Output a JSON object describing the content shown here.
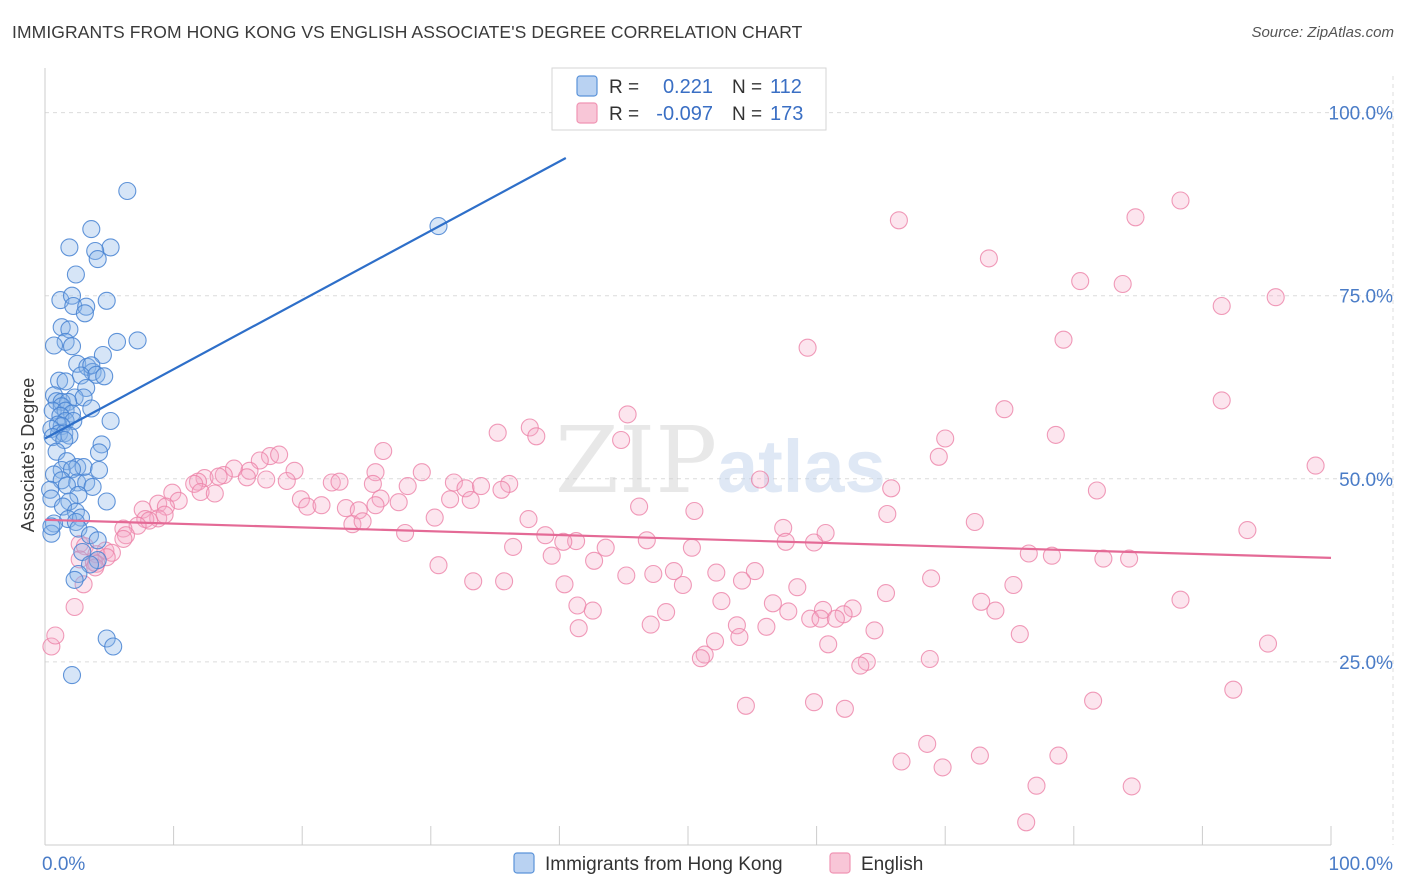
{
  "title": "IMMIGRANTS FROM HONG KONG VS ENGLISH ASSOCIATE'S DEGREE CORRELATION CHART",
  "source": "Source: ZipAtlas.com",
  "watermark": {
    "part1": "ZIP",
    "part2": "atlas"
  },
  "colors": {
    "blue": "#5b93d9",
    "blue_line": "#2e6fc9",
    "pink": "#f095b4",
    "pink_line": "#e46a96",
    "grid": "#dcdcdc",
    "tick": "#4a7cc7"
  },
  "chart_data": {
    "type": "scatter",
    "ylabel": "Associate's Degree",
    "xlim": [
      0,
      100
    ],
    "ylim": [
      0,
      105
    ],
    "x_ticks": [
      {
        "value": 0,
        "label": "0.0%"
      },
      {
        "value": 100,
        "label": "100.0%"
      }
    ],
    "y_ticks": [
      {
        "value": 25,
        "label": "25.0%"
      },
      {
        "value": 50,
        "label": "50.0%"
      },
      {
        "value": 75,
        "label": "75.0%"
      },
      {
        "value": 100,
        "label": "100.0%"
      }
    ],
    "legend_top": [
      {
        "series": "Immigrants from Hong Kong",
        "r_label": "R =",
        "r": "0.221",
        "n_label": "N =",
        "n": "112"
      },
      {
        "series": "English",
        "r_label": "R =",
        "r": "-0.097",
        "n_label": "N =",
        "n": "173"
      }
    ],
    "series": [
      {
        "name": "Immigrants from Hong Kong",
        "color": "#5b93d9",
        "trend": {
          "x": [
            0,
            40.5
          ],
          "y": [
            55.5,
            93.8
          ]
        },
        "points": [
          [
            6.4,
            89.3
          ],
          [
            3.6,
            84.1
          ],
          [
            1.9,
            81.6
          ],
          [
            5.1,
            81.6
          ],
          [
            3.9,
            81.1
          ],
          [
            4.1,
            80.0
          ],
          [
            2.4,
            77.9
          ],
          [
            1.2,
            74.4
          ],
          [
            2.1,
            75.0
          ],
          [
            2.2,
            73.6
          ],
          [
            3.2,
            73.5
          ],
          [
            4.8,
            74.3
          ],
          [
            3.1,
            72.6
          ],
          [
            1.3,
            70.7
          ],
          [
            1.9,
            70.4
          ],
          [
            1.6,
            68.7
          ],
          [
            5.6,
            68.7
          ],
          [
            7.2,
            68.9
          ],
          [
            2.1,
            68.1
          ],
          [
            0.7,
            68.2
          ],
          [
            4.5,
            66.9
          ],
          [
            2.5,
            65.7
          ],
          [
            3.3,
            65.3
          ],
          [
            3.7,
            64.6
          ],
          [
            3.6,
            65.5
          ],
          [
            2.8,
            64.1
          ],
          [
            4.0,
            64.2
          ],
          [
            4.6,
            64.0
          ],
          [
            1.1,
            63.4
          ],
          [
            1.6,
            63.3
          ],
          [
            3.2,
            62.4
          ],
          [
            0.7,
            61.4
          ],
          [
            2.3,
            61.1
          ],
          [
            3.0,
            61.1
          ],
          [
            0.9,
            60.6
          ],
          [
            1.3,
            60.5
          ],
          [
            1.8,
            60.5
          ],
          [
            1.3,
            59.9
          ],
          [
            3.6,
            59.6
          ],
          [
            0.6,
            59.3
          ],
          [
            1.6,
            59.3
          ],
          [
            2.1,
            58.9
          ],
          [
            1.2,
            58.6
          ],
          [
            1.6,
            57.9
          ],
          [
            2.2,
            57.9
          ],
          [
            5.1,
            57.9
          ],
          [
            1.0,
            57.4
          ],
          [
            1.3,
            57.2
          ],
          [
            0.5,
            56.8
          ],
          [
            1.1,
            56.2
          ],
          [
            1.5,
            56.2
          ],
          [
            1.9,
            55.9
          ],
          [
            0.6,
            55.7
          ],
          [
            1.5,
            55.3
          ],
          [
            4.4,
            54.7
          ],
          [
            0.9,
            53.7
          ],
          [
            4.2,
            53.6
          ],
          [
            1.7,
            52.4
          ],
          [
            2.5,
            51.6
          ],
          [
            3.0,
            51.6
          ],
          [
            1.3,
            51.2
          ],
          [
            2.1,
            51.3
          ],
          [
            4.2,
            51.2
          ],
          [
            0.7,
            50.6
          ],
          [
            1.3,
            49.8
          ],
          [
            2.5,
            49.5
          ],
          [
            3.2,
            49.5
          ],
          [
            1.7,
            49.1
          ],
          [
            3.7,
            48.9
          ],
          [
            0.4,
            48.5
          ],
          [
            2.6,
            47.8
          ],
          [
            0.5,
            47.3
          ],
          [
            1.9,
            46.9
          ],
          [
            4.8,
            46.9
          ],
          [
            1.4,
            46.2
          ],
          [
            2.4,
            45.5
          ],
          [
            1.8,
            44.5
          ],
          [
            2.8,
            44.7
          ],
          [
            2.4,
            44.1
          ],
          [
            0.7,
            43.9
          ],
          [
            2.6,
            43.2
          ],
          [
            0.5,
            42.5
          ],
          [
            3.5,
            42.3
          ],
          [
            4.1,
            41.6
          ],
          [
            2.9,
            40.0
          ],
          [
            0.5,
            43.5
          ],
          [
            4.1,
            38.9
          ],
          [
            3.5,
            38.3
          ],
          [
            2.6,
            37.0
          ],
          [
            2.3,
            36.2
          ],
          [
            4.8,
            28.2
          ],
          [
            5.3,
            27.1
          ],
          [
            2.1,
            23.2
          ],
          [
            30.6,
            84.5
          ]
        ]
      },
      {
        "name": "English",
        "color": "#f095b4",
        "trend": {
          "x": [
            0,
            100
          ],
          "y": [
            44.4,
            39.2
          ]
        },
        "points": [
          [
            88.3,
            88.0
          ],
          [
            84.8,
            85.7
          ],
          [
            66.4,
            85.3
          ],
          [
            73.4,
            80.1
          ],
          [
            80.5,
            77.0
          ],
          [
            83.8,
            76.6
          ],
          [
            95.7,
            74.8
          ],
          [
            91.5,
            73.6
          ],
          [
            59.3,
            67.9
          ],
          [
            79.2,
            69.0
          ],
          [
            91.5,
            60.7
          ],
          [
            74.6,
            59.5
          ],
          [
            45.3,
            58.8
          ],
          [
            37.7,
            57.0
          ],
          [
            38.2,
            55.8
          ],
          [
            35.2,
            56.3
          ],
          [
            70.0,
            55.5
          ],
          [
            78.6,
            56.0
          ],
          [
            44.8,
            55.3
          ],
          [
            69.5,
            53.0
          ],
          [
            26.3,
            53.8
          ],
          [
            17.5,
            53.1
          ],
          [
            18.2,
            53.3
          ],
          [
            16.7,
            52.5
          ],
          [
            25.7,
            50.9
          ],
          [
            14.7,
            51.4
          ],
          [
            15.9,
            51.1
          ],
          [
            19.4,
            51.1
          ],
          [
            29.3,
            50.9
          ],
          [
            13.9,
            50.5
          ],
          [
            15.7,
            50.2
          ],
          [
            17.2,
            49.9
          ],
          [
            12.4,
            50.1
          ],
          [
            13.5,
            50.3
          ],
          [
            11.9,
            49.6
          ],
          [
            18.8,
            49.7
          ],
          [
            22.3,
            49.5
          ],
          [
            22.9,
            49.6
          ],
          [
            25.5,
            49.3
          ],
          [
            28.2,
            49.0
          ],
          [
            31.8,
            49.5
          ],
          [
            32.7,
            48.7
          ],
          [
            33.9,
            49.0
          ],
          [
            36.1,
            49.3
          ],
          [
            35.5,
            48.5
          ],
          [
            55.6,
            49.9
          ],
          [
            98.8,
            51.8
          ],
          [
            65.8,
            48.7
          ],
          [
            81.8,
            48.4
          ],
          [
            11.6,
            49.3
          ],
          [
            12.1,
            48.2
          ],
          [
            13.2,
            48.0
          ],
          [
            9.9,
            48.1
          ],
          [
            10.4,
            47.0
          ],
          [
            8.8,
            46.6
          ],
          [
            9.4,
            46.2
          ],
          [
            19.9,
            47.2
          ],
          [
            26.1,
            47.3
          ],
          [
            27.5,
            46.8
          ],
          [
            31.5,
            47.2
          ],
          [
            33.1,
            47.1
          ],
          [
            20.4,
            46.2
          ],
          [
            21.5,
            46.4
          ],
          [
            23.4,
            46.0
          ],
          [
            24.4,
            45.7
          ],
          [
            25.7,
            46.4
          ],
          [
            30.3,
            44.7
          ],
          [
            46.2,
            46.2
          ],
          [
            50.5,
            45.6
          ],
          [
            65.5,
            45.2
          ],
          [
            7.6,
            45.8
          ],
          [
            8.8,
            44.6
          ],
          [
            9.3,
            45.1
          ],
          [
            7.8,
            44.5
          ],
          [
            8.1,
            44.3
          ],
          [
            7.2,
            43.6
          ],
          [
            23.9,
            43.8
          ],
          [
            24.7,
            44.2
          ],
          [
            37.6,
            44.5
          ],
          [
            57.4,
            43.3
          ],
          [
            72.3,
            44.1
          ],
          [
            6.1,
            43.2
          ],
          [
            6.3,
            42.3
          ],
          [
            6.1,
            41.8
          ],
          [
            28.0,
            42.6
          ],
          [
            38.9,
            42.3
          ],
          [
            41.3,
            41.5
          ],
          [
            40.3,
            41.4
          ],
          [
            46.8,
            41.6
          ],
          [
            60.7,
            42.6
          ],
          [
            93.5,
            43.0
          ],
          [
            57.6,
            41.4
          ],
          [
            2.7,
            41.1
          ],
          [
            3.1,
            40.8
          ],
          [
            4.7,
            40.2
          ],
          [
            5.2,
            39.9
          ],
          [
            36.4,
            40.7
          ],
          [
            43.6,
            40.6
          ],
          [
            50.3,
            40.6
          ],
          [
            59.8,
            41.3
          ],
          [
            4.0,
            39.7
          ],
          [
            4.8,
            39.3
          ],
          [
            2.7,
            39.0
          ],
          [
            3.8,
            38.6
          ],
          [
            39.4,
            39.5
          ],
          [
            42.7,
            38.8
          ],
          [
            76.5,
            39.8
          ],
          [
            78.3,
            39.5
          ],
          [
            82.3,
            39.1
          ],
          [
            84.3,
            39.1
          ],
          [
            4.0,
            38.4
          ],
          [
            3.9,
            37.9
          ],
          [
            30.6,
            38.2
          ],
          [
            48.9,
            37.4
          ],
          [
            52.2,
            37.2
          ],
          [
            55.2,
            37.4
          ],
          [
            45.2,
            36.8
          ],
          [
            47.3,
            37.0
          ],
          [
            54.2,
            36.1
          ],
          [
            68.9,
            36.4
          ],
          [
            75.3,
            35.5
          ],
          [
            33.3,
            36.0
          ],
          [
            35.7,
            36.0
          ],
          [
            40.4,
            35.6
          ],
          [
            49.6,
            35.5
          ],
          [
            58.5,
            35.2
          ],
          [
            3.0,
            35.6
          ],
          [
            65.4,
            34.4
          ],
          [
            52.6,
            33.3
          ],
          [
            56.6,
            33.0
          ],
          [
            72.8,
            33.2
          ],
          [
            88.3,
            33.5
          ],
          [
            41.4,
            32.7
          ],
          [
            60.5,
            32.1
          ],
          [
            62.8,
            32.3
          ],
          [
            42.6,
            32.0
          ],
          [
            48.3,
            31.8
          ],
          [
            62.1,
            31.5
          ],
          [
            57.8,
            31.9
          ],
          [
            73.9,
            32.0
          ],
          [
            59.5,
            30.9
          ],
          [
            60.3,
            30.9
          ],
          [
            61.5,
            30.9
          ],
          [
            47.1,
            30.1
          ],
          [
            53.8,
            30.0
          ],
          [
            41.5,
            29.6
          ],
          [
            56.1,
            29.8
          ],
          [
            64.5,
            29.3
          ],
          [
            75.8,
            28.8
          ],
          [
            54.0,
            28.4
          ],
          [
            52.1,
            27.8
          ],
          [
            60.9,
            27.4
          ],
          [
            95.1,
            27.5
          ],
          [
            0.5,
            27.1
          ],
          [
            2.3,
            32.5
          ],
          [
            0.8,
            28.6
          ],
          [
            51.3,
            26.0
          ],
          [
            51.0,
            25.5
          ],
          [
            63.9,
            25.0
          ],
          [
            63.4,
            24.5
          ],
          [
            68.8,
            25.4
          ],
          [
            92.4,
            21.2
          ],
          [
            59.8,
            19.5
          ],
          [
            81.5,
            19.7
          ],
          [
            54.5,
            19.0
          ],
          [
            62.2,
            18.6
          ],
          [
            68.6,
            13.8
          ],
          [
            72.7,
            12.2
          ],
          [
            66.6,
            11.4
          ],
          [
            78.8,
            12.2
          ],
          [
            69.8,
            10.6
          ],
          [
            77.1,
            8.1
          ],
          [
            84.5,
            8.0
          ],
          [
            76.3,
            3.1
          ]
        ]
      }
    ]
  }
}
